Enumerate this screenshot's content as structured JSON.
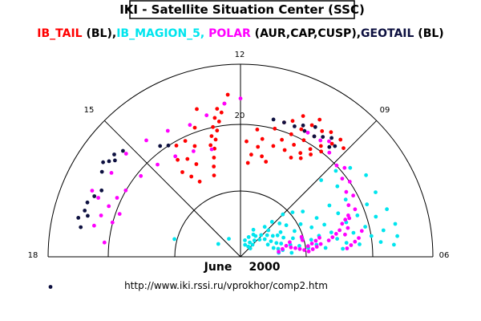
{
  "header": {
    "title": "IKI - Satellite Situation Center (SSC)",
    "legend": [
      {
        "text": "IB_TAIL",
        "color": "#ff0000"
      },
      {
        "text": " (BL),",
        "color": "#000000"
      },
      {
        "text": "IB_MAGION_5,",
        "color": "#00e5ee"
      },
      {
        "text": " POLAR",
        "color": "#ff00ff"
      },
      {
        "text": " (AUR,CAP,CUSP),",
        "color": "#000000"
      },
      {
        "text": "GEOTAIL",
        "color": "#0d1040"
      },
      {
        "text": " (BL)",
        "color": "#000000"
      }
    ]
  },
  "footer": {
    "date_month": "June",
    "date_year": "2000",
    "url": "http://www.iki.rssi.ru/vprokhor/comp2.htm"
  },
  "chart_data": {
    "type": "scatter",
    "coordinate_system": "polar half-disc (magnetic local time vs. invariant latitude)",
    "mlt_labels": [
      {
        "mlt": 18,
        "label": "18"
      },
      {
        "mlt": 15,
        "label": "15"
      },
      {
        "mlt": 12,
        "label": "12"
      },
      {
        "mlt": 9,
        "label": "09"
      },
      {
        "mlt": 6,
        "label": "06"
      }
    ],
    "ring_labels": [
      {
        "ring": 2,
        "label": "20"
      }
    ],
    "ring_count": 3,
    "grid": true,
    "series": [
      {
        "name": "IB_TAIL",
        "color": "#ff0000",
        "points": [
          [
            13.2,
            20
          ],
          [
            13.1,
            22
          ],
          [
            13.0,
            24
          ],
          [
            12.9,
            26
          ],
          [
            12.8,
            28
          ],
          [
            12.7,
            30
          ],
          [
            12.6,
            32
          ],
          [
            12.5,
            34
          ],
          [
            12.4,
            36
          ],
          [
            12.3,
            38
          ],
          [
            13.0,
            27
          ],
          [
            12.9,
            29
          ],
          [
            12.8,
            31
          ],
          [
            12.7,
            33
          ],
          [
            12.6,
            35
          ],
          [
            13.9,
            20
          ],
          [
            13.7,
            24
          ],
          [
            13.5,
            28
          ],
          [
            13.3,
            32
          ],
          [
            13.1,
            36
          ],
          [
            14.1,
            22
          ],
          [
            13.9,
            26
          ],
          [
            13.7,
            30
          ],
          [
            14.3,
            24
          ],
          [
            14.2,
            27
          ],
          [
            14.0,
            30
          ],
          [
            11.7,
            22
          ],
          [
            11.6,
            24
          ],
          [
            11.4,
            26
          ],
          [
            11.2,
            24
          ],
          [
            11.0,
            23
          ],
          [
            11.3,
            28
          ],
          [
            11.5,
            30
          ],
          [
            11.8,
            27
          ],
          [
            10.9,
            27
          ],
          [
            10.7,
            29
          ],
          [
            10.5,
            31
          ],
          [
            10.3,
            33
          ],
          [
            10.1,
            35
          ],
          [
            10.5,
            27
          ],
          [
            10.3,
            29
          ],
          [
            10.1,
            31
          ],
          [
            9.9,
            33
          ],
          [
            10.2,
            26
          ],
          [
            10.0,
            28
          ],
          [
            9.8,
            30
          ],
          [
            9.6,
            32
          ],
          [
            9.7,
            29
          ],
          [
            9.5,
            31
          ],
          [
            9.4,
            34
          ],
          [
            9.8,
            35
          ],
          [
            9.6,
            36
          ],
          [
            10.0,
            37
          ],
          [
            10.4,
            36
          ],
          [
            10.8,
            33
          ],
          [
            11.0,
            31
          ],
          [
            10.6,
            34
          ],
          [
            9.9,
            27
          ],
          [
            9.3,
            36
          ],
          [
            9.1,
            35
          ]
        ]
      },
      {
        "name": "IB_MAGION_5",
        "color": "#00e5ee",
        "points": [
          [
            10.5,
            5
          ],
          [
            10.3,
            7
          ],
          [
            10.6,
            3
          ],
          [
            10.0,
            6
          ],
          [
            9.8,
            4
          ],
          [
            9.6,
            6
          ],
          [
            9.5,
            3
          ],
          [
            9.3,
            5
          ],
          [
            9.1,
            7
          ],
          [
            9.0,
            4
          ],
          [
            8.8,
            6
          ],
          [
            8.7,
            3
          ],
          [
            9.4,
            9
          ],
          [
            9.2,
            11
          ],
          [
            8.9,
            9
          ],
          [
            8.6,
            8
          ],
          [
            8.4,
            7
          ],
          [
            8.2,
            9
          ],
          [
            8.0,
            10
          ],
          [
            7.8,
            8
          ],
          [
            7.6,
            7
          ],
          [
            7.4,
            9
          ],
          [
            7.2,
            10
          ],
          [
            7.0,
            8
          ],
          [
            6.8,
            9
          ],
          [
            6.6,
            10
          ],
          [
            6.4,
            9
          ],
          [
            6.9,
            12
          ],
          [
            7.3,
            13
          ],
          [
            7.7,
            14
          ],
          [
            7.1,
            15
          ],
          [
            6.7,
            14
          ],
          [
            6.5,
            16
          ],
          [
            6.9,
            17
          ],
          [
            7.5,
            18
          ],
          [
            7.9,
            16
          ],
          [
            8.3,
            13
          ],
          [
            8.7,
            12
          ],
          [
            8.1,
            11
          ],
          [
            7.6,
            11
          ],
          [
            7.8,
            20
          ],
          [
            7.4,
            21
          ],
          [
            7.0,
            22
          ],
          [
            6.7,
            23
          ],
          [
            6.5,
            25
          ],
          [
            6.8,
            27
          ],
          [
            7.2,
            26
          ],
          [
            7.6,
            25
          ],
          [
            8.0,
            24
          ],
          [
            7.3,
            29
          ],
          [
            6.9,
            30
          ],
          [
            6.6,
            31
          ],
          [
            6.4,
            33
          ],
          [
            6.7,
            34
          ],
          [
            7.1,
            33
          ],
          [
            7.5,
            32
          ],
          [
            6.5,
            37
          ],
          [
            6.8,
            37
          ],
          [
            7.2,
            36
          ],
          [
            7.7,
            35
          ],
          [
            8.2,
            35
          ],
          [
            8.6,
            33
          ],
          [
            8.8,
            30
          ],
          [
            6.4,
            28
          ],
          [
            6.4,
            20
          ],
          [
            6.6,
            18
          ],
          [
            7.0,
            19
          ],
          [
            8.4,
            18
          ],
          [
            8.7,
            16
          ],
          [
            9.0,
            14
          ],
          [
            16.0,
            6
          ],
          [
            14.2,
            5
          ],
          [
            17.0,
            16
          ],
          [
            11.0,
            4
          ],
          [
            6.3,
            12
          ],
          [
            6.3,
            24
          ],
          [
            6.3,
            36
          ],
          [
            7.9,
            28
          ],
          [
            8.4,
            28
          ],
          [
            8.9,
            26
          ]
        ]
      },
      {
        "name": "POLAR",
        "color": "#ff00ff",
        "points": [
          [
            17.2,
            35
          ],
          [
            16.9,
            34
          ],
          [
            16.6,
            33
          ],
          [
            16.3,
            32
          ],
          [
            17.0,
            31
          ],
          [
            16.4,
            38
          ],
          [
            15.8,
            36
          ],
          [
            15.2,
            36
          ],
          [
            14.6,
            35
          ],
          [
            14.0,
            34
          ],
          [
            13.4,
            33
          ],
          [
            12.9,
            34
          ],
          [
            12.4,
            36
          ],
          [
            12.0,
            37
          ],
          [
            16.7,
            30
          ],
          [
            16.0,
            31
          ],
          [
            15.4,
            30
          ],
          [
            14.8,
            29
          ],
          [
            14.2,
            28
          ],
          [
            13.6,
            27
          ],
          [
            13.0,
            26
          ],
          [
            10.1,
            33
          ],
          [
            9.7,
            33
          ],
          [
            9.3,
            32
          ],
          [
            8.9,
            31
          ],
          [
            8.5,
            30
          ],
          [
            8.1,
            29
          ],
          [
            7.7,
            28
          ],
          [
            7.3,
            27
          ],
          [
            7.0,
            26
          ],
          [
            6.8,
            25
          ],
          [
            9.5,
            34
          ],
          [
            8.7,
            32
          ],
          [
            8.3,
            31
          ],
          [
            7.9,
            30
          ],
          [
            7.5,
            29
          ],
          [
            7.4,
            27
          ],
          [
            7.3,
            26
          ],
          [
            7.2,
            25
          ],
          [
            7.0,
            24
          ],
          [
            6.9,
            23
          ],
          [
            6.8,
            22
          ],
          [
            6.7,
            21
          ],
          [
            6.9,
            19
          ],
          [
            6.8,
            18
          ],
          [
            6.7,
            17
          ],
          [
            6.6,
            16
          ],
          [
            7.0,
            15
          ],
          [
            7.2,
            15
          ],
          [
            6.9,
            11
          ],
          [
            6.7,
            10
          ],
          [
            6.5,
            9
          ],
          [
            7.1,
            12
          ],
          [
            6.8,
            29
          ],
          [
            6.6,
            28
          ],
          [
            6.5,
            27
          ],
          [
            6.4,
            26
          ],
          [
            6.3,
            25
          ],
          [
            6.6,
            19
          ],
          [
            6.5,
            18
          ],
          [
            6.4,
            17
          ],
          [
            6.3,
            16
          ],
          [
            6.4,
            15
          ],
          [
            6.5,
            14
          ],
          [
            6.6,
            13
          ],
          [
            6.7,
            12
          ],
          [
            16.5,
            36
          ],
          [
            17.6,
            32
          ]
        ]
      },
      {
        "name": "GEOTAIL",
        "color": "#0d1040",
        "points": [
          [
            16.3,
            36
          ],
          [
            16.5,
            37
          ],
          [
            16.7,
            38
          ],
          [
            16.9,
            38
          ],
          [
            17.1,
            39
          ],
          [
            17.0,
            37
          ],
          [
            17.3,
            38
          ],
          [
            15.2,
            37
          ],
          [
            15.4,
            38
          ],
          [
            15.6,
            38
          ],
          [
            15.9,
            38
          ],
          [
            15.5,
            37
          ],
          [
            15.7,
            39
          ],
          [
            11.1,
            33
          ],
          [
            10.8,
            33
          ],
          [
            10.5,
            33
          ],
          [
            10.2,
            33
          ],
          [
            9.9,
            33
          ],
          [
            9.7,
            34
          ],
          [
            9.5,
            35
          ],
          [
            10.0,
            35
          ],
          [
            10.3,
            34
          ],
          [
            9.4,
            33
          ],
          [
            9.3,
            34
          ],
          [
            14.4,
            32
          ],
          [
            14.2,
            31
          ],
          [
            18.6,
            45
          ]
        ]
      }
    ]
  }
}
